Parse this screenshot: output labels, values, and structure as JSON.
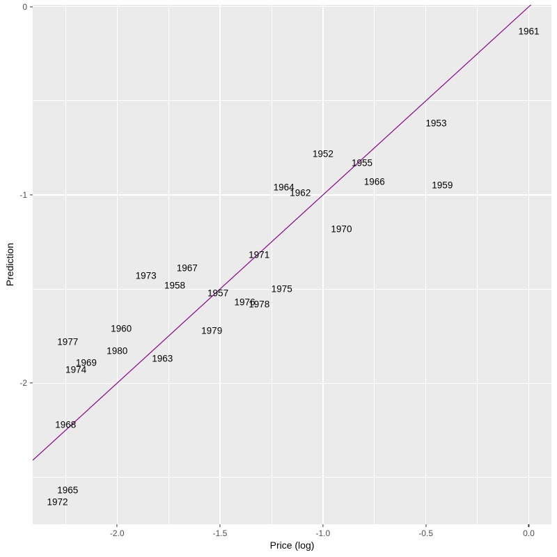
{
  "axes": {
    "x": {
      "label": "Price (log)",
      "range": [
        -2.41,
        0.11
      ],
      "major_ticks": [
        -2.0,
        -1.5,
        -1.0,
        -0.5,
        0.0
      ],
      "major_tick_labels": [
        "-2.0",
        "-1.5",
        "-1.0",
        "-0.5",
        "0.0"
      ],
      "minor_ticks": [
        -2.25,
        -1.75,
        -1.25,
        -0.75,
        -0.25
      ]
    },
    "y": {
      "label": "Prediction",
      "range": [
        -2.75,
        0.01
      ],
      "major_ticks": [
        0,
        -1,
        -2
      ],
      "major_tick_labels": [
        "0",
        "-1",
        "-2"
      ],
      "minor_ticks": [
        -0.5,
        -1.5,
        -2.5
      ]
    }
  },
  "chart_data": {
    "type": "scatter",
    "marker": "text-year-label",
    "title": "",
    "xlabel": "Price (log)",
    "ylabel": "Prediction",
    "xlim": [
      -2.41,
      0.11
    ],
    "ylim": [
      -2.75,
      0.01
    ],
    "grid": "major+minor",
    "legend": "none",
    "points": [
      {
        "label": "1952",
        "x": -1.0,
        "y": -0.78
      },
      {
        "label": "1953",
        "x": -0.45,
        "y": -0.62
      },
      {
        "label": "1955",
        "x": -0.81,
        "y": -0.83
      },
      {
        "label": "1957",
        "x": -1.51,
        "y": -1.52
      },
      {
        "label": "1958",
        "x": -1.72,
        "y": -1.48
      },
      {
        "label": "1959",
        "x": -0.42,
        "y": -0.95
      },
      {
        "label": "1960",
        "x": -1.98,
        "y": -1.71
      },
      {
        "label": "1961",
        "x": 0.0,
        "y": -0.13
      },
      {
        "label": "1962",
        "x": -1.11,
        "y": -0.99
      },
      {
        "label": "1963",
        "x": -1.78,
        "y": -1.87
      },
      {
        "label": "1964",
        "x": -1.19,
        "y": -0.96
      },
      {
        "label": "1965",
        "x": -2.24,
        "y": -2.57
      },
      {
        "label": "1966",
        "x": -0.75,
        "y": -0.93
      },
      {
        "label": "1967",
        "x": -1.66,
        "y": -1.39
      },
      {
        "label": "1968",
        "x": -2.25,
        "y": -2.22
      },
      {
        "label": "1969",
        "x": -2.15,
        "y": -1.89
      },
      {
        "label": "1970",
        "x": -0.91,
        "y": -1.18
      },
      {
        "label": "1971",
        "x": -1.31,
        "y": -1.32
      },
      {
        "label": "1972",
        "x": -2.29,
        "y": -2.63
      },
      {
        "label": "1973",
        "x": -1.86,
        "y": -1.43
      },
      {
        "label": "1974",
        "x": -2.2,
        "y": -1.93
      },
      {
        "label": "1975",
        "x": -1.2,
        "y": -1.5
      },
      {
        "label": "1976",
        "x": -1.38,
        "y": -1.57
      },
      {
        "label": "1977",
        "x": -2.24,
        "y": -1.78
      },
      {
        "label": "1978",
        "x": -1.31,
        "y": -1.58
      },
      {
        "label": "1979",
        "x": -1.54,
        "y": -1.72
      },
      {
        "label": "1980",
        "x": -2.0,
        "y": -1.83
      }
    ],
    "reference_line": {
      "type": "abline",
      "slope": 1,
      "intercept": 0,
      "color": "#8B008B",
      "width": 1.2
    }
  },
  "style": {
    "panel_bg": "#EBEBEB",
    "grid_color": "#FFFFFF",
    "tick_label_color": "#4D4D4D",
    "axis_title_color": "#000000",
    "point_label_color": "#000000",
    "tick_mark_color": "#333333",
    "figure_bg": "#FFFFFF"
  }
}
